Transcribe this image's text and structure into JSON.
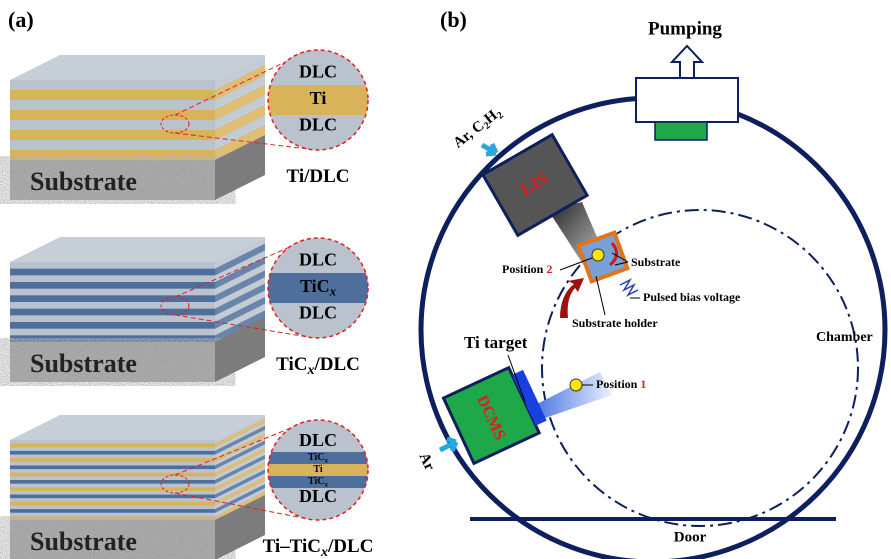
{
  "panel_a": {
    "label": "(a)",
    "blocks": [
      {
        "zoom": [
          {
            "text": "DLC"
          },
          {
            "text": "Ti"
          },
          {
            "text": "DLC"
          }
        ],
        "substrate": "Substrate",
        "caption": [
          "Ti/DLC"
        ]
      },
      {
        "zoom": [
          {
            "text": "DLC"
          },
          {
            "text": "TiC",
            "sub": "x"
          },
          {
            "text": "DLC"
          }
        ],
        "substrate": "Substrate",
        "caption": [
          "TiC",
          "x",
          "/DLC"
        ]
      },
      {
        "zoom": [
          {
            "text": "DLC"
          },
          {
            "text": "TiC",
            "sub": "x"
          },
          {
            "text": "Ti"
          },
          {
            "text": "TiC",
            "sub": "x"
          },
          {
            "text": "DLC"
          }
        ],
        "substrate": "Substrate",
        "caption": [
          "Ti–TiC",
          "x",
          "/DLC"
        ]
      }
    ]
  },
  "panel_b": {
    "label": "(b)",
    "pumping": "Pumping",
    "gas_lis": [
      "Ar, C",
      "2",
      "H",
      "2"
    ],
    "lis": "LIS",
    "position_2": [
      "Position ",
      "2"
    ],
    "substrate": "Substrate",
    "pulsed_bias": "Pulsed bias voltage",
    "substrate_holder": "Substrate holder",
    "ti_target": "Ti target",
    "position_1": [
      "Position ",
      "1"
    ],
    "chamber": "Chamber",
    "dcms": "DCMS",
    "gas_dcms": "Ar",
    "door": "Door"
  }
}
